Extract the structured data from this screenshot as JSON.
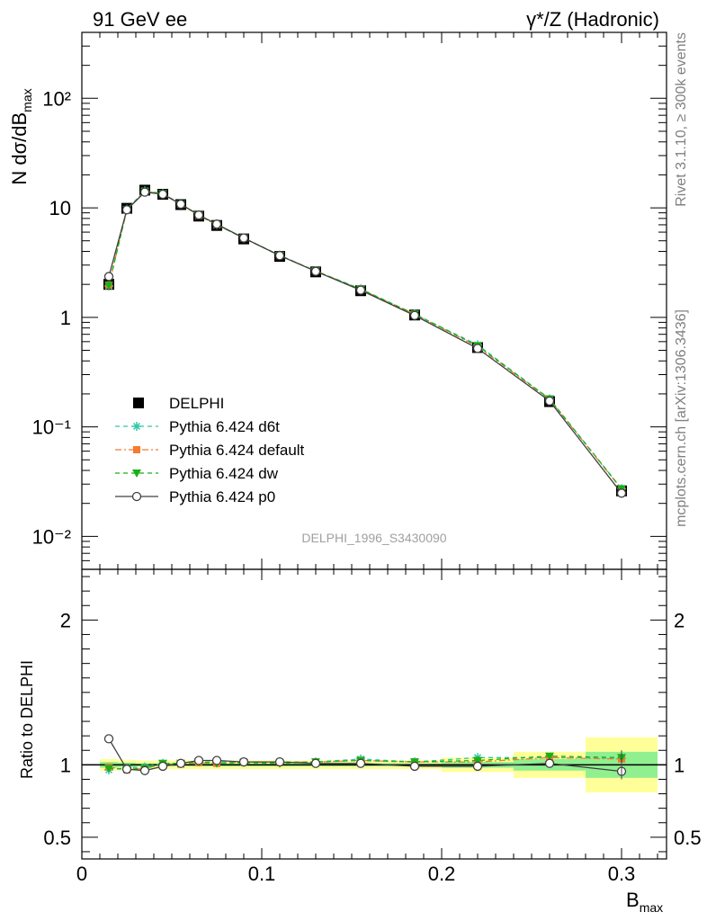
{
  "header": {
    "left_title": "91 GeV ee",
    "right_title": "γ*/Z (Hadronic)"
  },
  "side_labels": {
    "rivet": "Rivet 3.1.10, ≥ 300k events",
    "mcplots": "mcplots.cern.ch [arXiv:1306.3436]"
  },
  "watermark": "DELPHI_1996_S3430090",
  "chart_data": [
    {
      "type": "line",
      "panel": "main",
      "ylabel": "N dσ/dB_max",
      "yscale": "log",
      "ylim": [
        0.005,
        400
      ],
      "xlim": [
        0,
        0.325
      ],
      "yticks": [
        {
          "value": 0.01,
          "label": "10⁻²"
        },
        {
          "value": 0.1,
          "label": "10⁻¹"
        },
        {
          "value": 1,
          "label": "1"
        },
        {
          "value": 10,
          "label": "10"
        },
        {
          "value": 100,
          "label": "10²"
        }
      ],
      "legend_position": "bottom-left",
      "x": [
        0.015,
        0.025,
        0.035,
        0.045,
        0.055,
        0.065,
        0.075,
        0.09,
        0.11,
        0.13,
        0.155,
        0.185,
        0.22,
        0.26,
        0.3
      ],
      "series": [
        {
          "name": "DELPHI",
          "style": "data",
          "color": "#000000",
          "values": [
            2.0,
            9.9,
            14.5,
            13.3,
            10.7,
            8.4,
            6.9,
            5.2,
            3.6,
            2.6,
            1.75,
            1.05,
            0.53,
            0.17,
            0.026
          ]
        },
        {
          "name": "Pythia 6.424 d6t",
          "style": "dashed",
          "marker": "star",
          "color": "#30c8a8",
          "values": [
            1.93,
            9.7,
            14.3,
            13.5,
            10.8,
            8.6,
            7.0,
            5.3,
            3.7,
            2.65,
            1.82,
            1.07,
            0.56,
            0.18,
            0.0272
          ]
        },
        {
          "name": "Pythia 6.424 default",
          "style": "dashdot",
          "marker": "square",
          "color": "#f47b30",
          "values": [
            1.97,
            9.6,
            14.2,
            13.4,
            10.8,
            8.5,
            7.0,
            5.3,
            3.67,
            2.65,
            1.8,
            1.07,
            0.54,
            0.178,
            0.027
          ]
        },
        {
          "name": "Pythia 6.424 dw",
          "style": "dashed",
          "marker": "triangle-down",
          "color": "#18b018",
          "values": [
            1.95,
            9.6,
            14.1,
            13.5,
            10.8,
            8.6,
            7.0,
            5.3,
            3.66,
            2.65,
            1.8,
            1.07,
            0.55,
            0.18,
            0.0272
          ]
        },
        {
          "name": "Pythia 6.424 p0",
          "style": "solid",
          "marker": "circle-open",
          "color": "#404040",
          "values": [
            2.36,
            9.6,
            13.9,
            13.3,
            10.8,
            8.6,
            7.1,
            5.3,
            3.66,
            2.63,
            1.77,
            1.04,
            0.52,
            0.172,
            0.0248
          ]
        }
      ]
    },
    {
      "type": "line",
      "panel": "ratio",
      "ylabel": "Ratio to DELPHI",
      "xlabel": "B_max",
      "ylim": [
        0.35,
        2.35
      ],
      "xlim": [
        0,
        0.325
      ],
      "yticks": [
        {
          "value": 0.5,
          "label": "0.5"
        },
        {
          "value": 1,
          "label": "1"
        },
        {
          "value": 2,
          "label": "2"
        }
      ],
      "xticks": [
        {
          "value": 0,
          "label": "0"
        },
        {
          "value": 0.1,
          "label": "0.1"
        },
        {
          "value": 0.2,
          "label": "0.2"
        },
        {
          "value": 0.3,
          "label": "0.3"
        }
      ],
      "uncertainty_bands": {
        "bins": [
          [
            0.01,
            0.02
          ],
          [
            0.02,
            0.03
          ],
          [
            0.03,
            0.04
          ],
          [
            0.04,
            0.05
          ],
          [
            0.05,
            0.06
          ],
          [
            0.06,
            0.07
          ],
          [
            0.07,
            0.08
          ],
          [
            0.08,
            0.1
          ],
          [
            0.1,
            0.12
          ],
          [
            0.12,
            0.14
          ],
          [
            0.14,
            0.17
          ],
          [
            0.17,
            0.2
          ],
          [
            0.2,
            0.24
          ],
          [
            0.24,
            0.28
          ],
          [
            0.28,
            0.32
          ]
        ],
        "inner_half_width": [
          0.02,
          0.015,
          0.01,
          0.01,
          0.01,
          0.01,
          0.01,
          0.01,
          0.01,
          0.01,
          0.01,
          0.01,
          0.02,
          0.04,
          0.09
        ],
        "outer_half_width": [
          0.04,
          0.035,
          0.03,
          0.03,
          0.03,
          0.03,
          0.03,
          0.03,
          0.03,
          0.03,
          0.03,
          0.03,
          0.05,
          0.09,
          0.19
        ],
        "inner_color": "#90f090",
        "outer_color": "#ffff99"
      },
      "x": [
        0.015,
        0.025,
        0.035,
        0.045,
        0.055,
        0.065,
        0.075,
        0.09,
        0.11,
        0.13,
        0.155,
        0.185,
        0.22,
        0.26,
        0.3
      ],
      "series": [
        {
          "name": "Pythia 6.424 d6t",
          "style": "dashed",
          "marker": "star",
          "color": "#30c8a8",
          "values": [
            0.965,
            0.98,
            0.985,
            1.01,
            1.01,
            1.02,
            1.02,
            1.02,
            1.02,
            1.02,
            1.04,
            1.02,
            1.05,
            1.05,
            1.045
          ]
        },
        {
          "name": "Pythia 6.424 default",
          "style": "dashdot",
          "marker": "square",
          "color": "#f47b30",
          "values": [
            0.985,
            0.965,
            0.975,
            1.005,
            1.005,
            1.015,
            1.01,
            1.02,
            1.015,
            1.02,
            1.03,
            1.02,
            1.02,
            1.05,
            1.04
          ]
        },
        {
          "name": "Pythia 6.424 dw",
          "style": "dashed",
          "marker": "triangle-down",
          "color": "#18b018",
          "values": [
            0.975,
            0.97,
            0.975,
            1.01,
            1.01,
            1.02,
            1.01,
            1.015,
            1.01,
            1.02,
            1.03,
            1.02,
            1.03,
            1.06,
            1.05
          ]
        },
        {
          "name": "Pythia 6.424 p0",
          "style": "solid",
          "marker": "circle-open",
          "color": "#404040",
          "values": [
            1.18,
            0.97,
            0.96,
            0.99,
            1.01,
            1.03,
            1.03,
            1.02,
            1.02,
            1.01,
            1.01,
            0.99,
            0.99,
            1.01,
            0.955
          ]
        }
      ]
    }
  ]
}
